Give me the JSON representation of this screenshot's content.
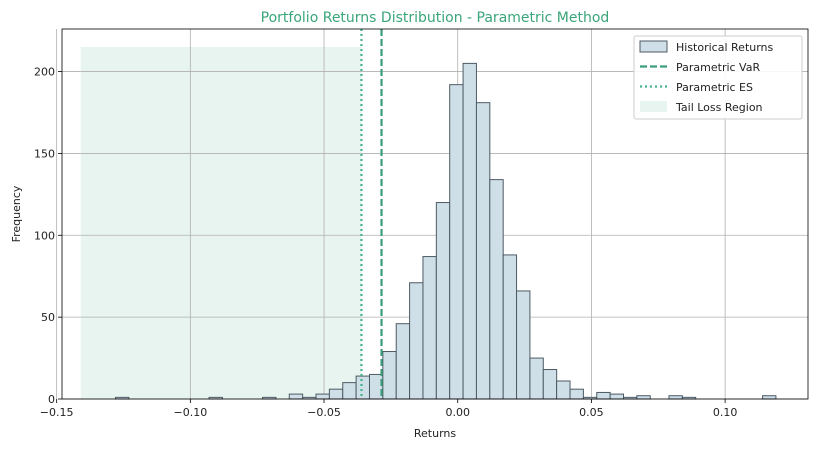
{
  "chart_data": {
    "type": "bar",
    "title": "Portfolio Returns Distribution - Parametric Method",
    "xlabel": "Returns",
    "ylabel": "Frequency",
    "xlim": [
      -0.148,
      0.131
    ],
    "ylim": [
      0,
      226
    ],
    "grid": true,
    "legend_position": "top-right",
    "x_ticks": [
      -0.15,
      -0.1,
      -0.05,
      0.0,
      0.05,
      0.1
    ],
    "x_tick_labels": [
      "−0.15",
      "−0.10",
      "−0.05",
      "0.00",
      "0.05",
      "0.10"
    ],
    "y_ticks": [
      0,
      50,
      100,
      150,
      200
    ],
    "y_tick_labels": [
      "0",
      "50",
      "100",
      "150",
      "200"
    ],
    "bin_width": 0.005,
    "histogram": {
      "name": "Historical Returns",
      "bin_starts": [
        -0.128,
        -0.093,
        -0.073,
        -0.063,
        -0.058,
        -0.053,
        -0.048,
        -0.043,
        -0.038,
        -0.033,
        -0.028,
        -0.023,
        -0.018,
        -0.013,
        -0.008,
        -0.003,
        0.002,
        0.007,
        0.012,
        0.017,
        0.022,
        0.027,
        0.032,
        0.037,
        0.042,
        0.047,
        0.052,
        0.057,
        0.062,
        0.067,
        0.079,
        0.084,
        0.114
      ],
      "counts": [
        1,
        1,
        1,
        3,
        1,
        3,
        6,
        10,
        14,
        15,
        29,
        46,
        71,
        87,
        120,
        192,
        205,
        181,
        134,
        88,
        66,
        25,
        18,
        11,
        6,
        1,
        4,
        3,
        1,
        2,
        2,
        1,
        2
      ]
    },
    "var": {
      "name": "Parametric VaR",
      "x": -0.0285
    },
    "es": {
      "name": "Parametric ES",
      "x": -0.036
    },
    "tail_region": {
      "name": "Tail Loss Region",
      "x_start": -0.141,
      "x_end": -0.036,
      "y_top": 215
    },
    "colors": {
      "title": "#3aa57a",
      "bar_fill": "#cfdfe8",
      "bar_edge": "#4d5a63",
      "var_line": "#3a9e7a",
      "es_line": "#43b38a",
      "tail_fill": "#e8f4ef",
      "grid": "#b0b0b0"
    }
  }
}
